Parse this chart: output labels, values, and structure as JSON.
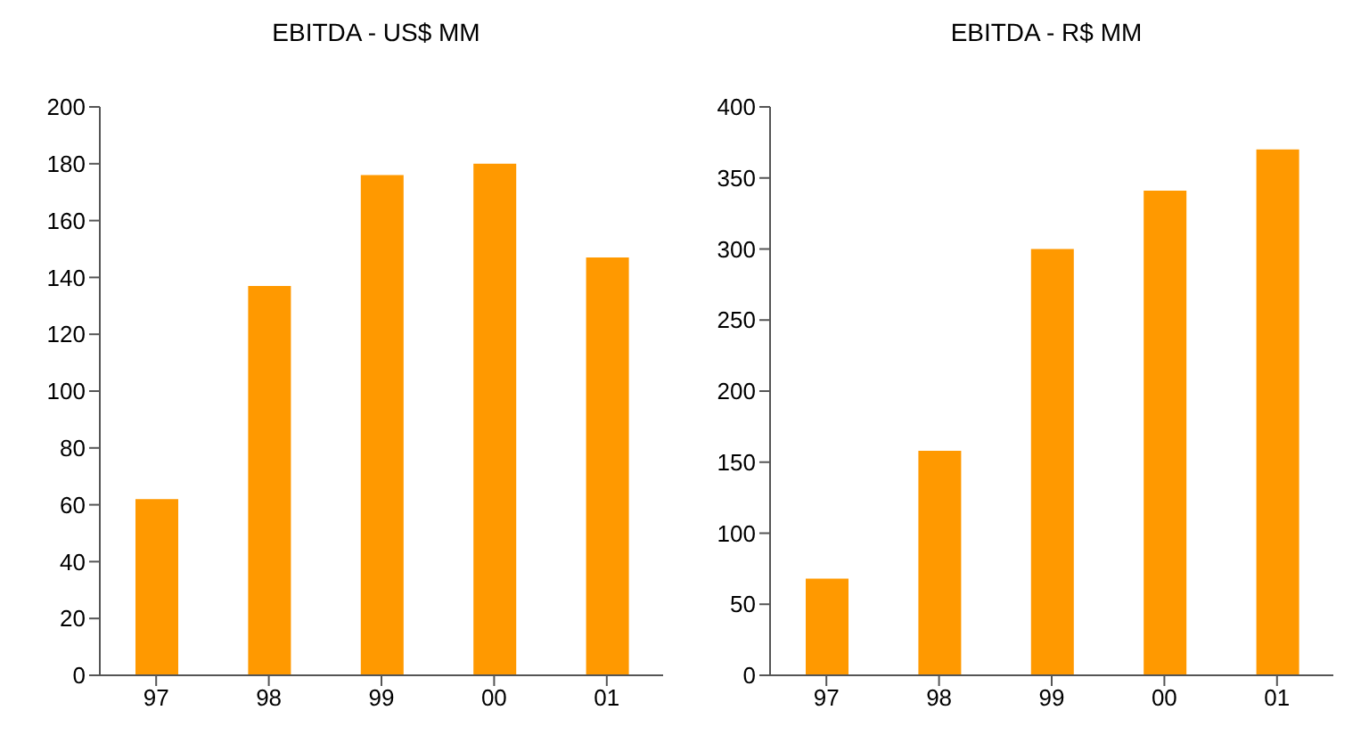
{
  "chart_data": [
    {
      "type": "bar",
      "title": "EBITDA - US$ MM",
      "categories": [
        "97",
        "98",
        "99",
        "00",
        "01"
      ],
      "values": [
        62,
        137,
        176,
        180,
        147
      ],
      "color": "#ff9900",
      "ylim": [
        0,
        200
      ],
      "yticks": [
        0,
        20,
        40,
        60,
        80,
        100,
        120,
        140,
        160,
        180,
        200
      ],
      "grid": false
    },
    {
      "type": "bar",
      "title": "EBITDA - R$ MM",
      "categories": [
        "97",
        "98",
        "99",
        "00",
        "01"
      ],
      "values": [
        68,
        158,
        300,
        341,
        370
      ],
      "color": "#ff9900",
      "ylim": [
        0,
        400
      ],
      "yticks": [
        0,
        50,
        100,
        150,
        200,
        250,
        300,
        350,
        400
      ],
      "grid": false
    }
  ]
}
